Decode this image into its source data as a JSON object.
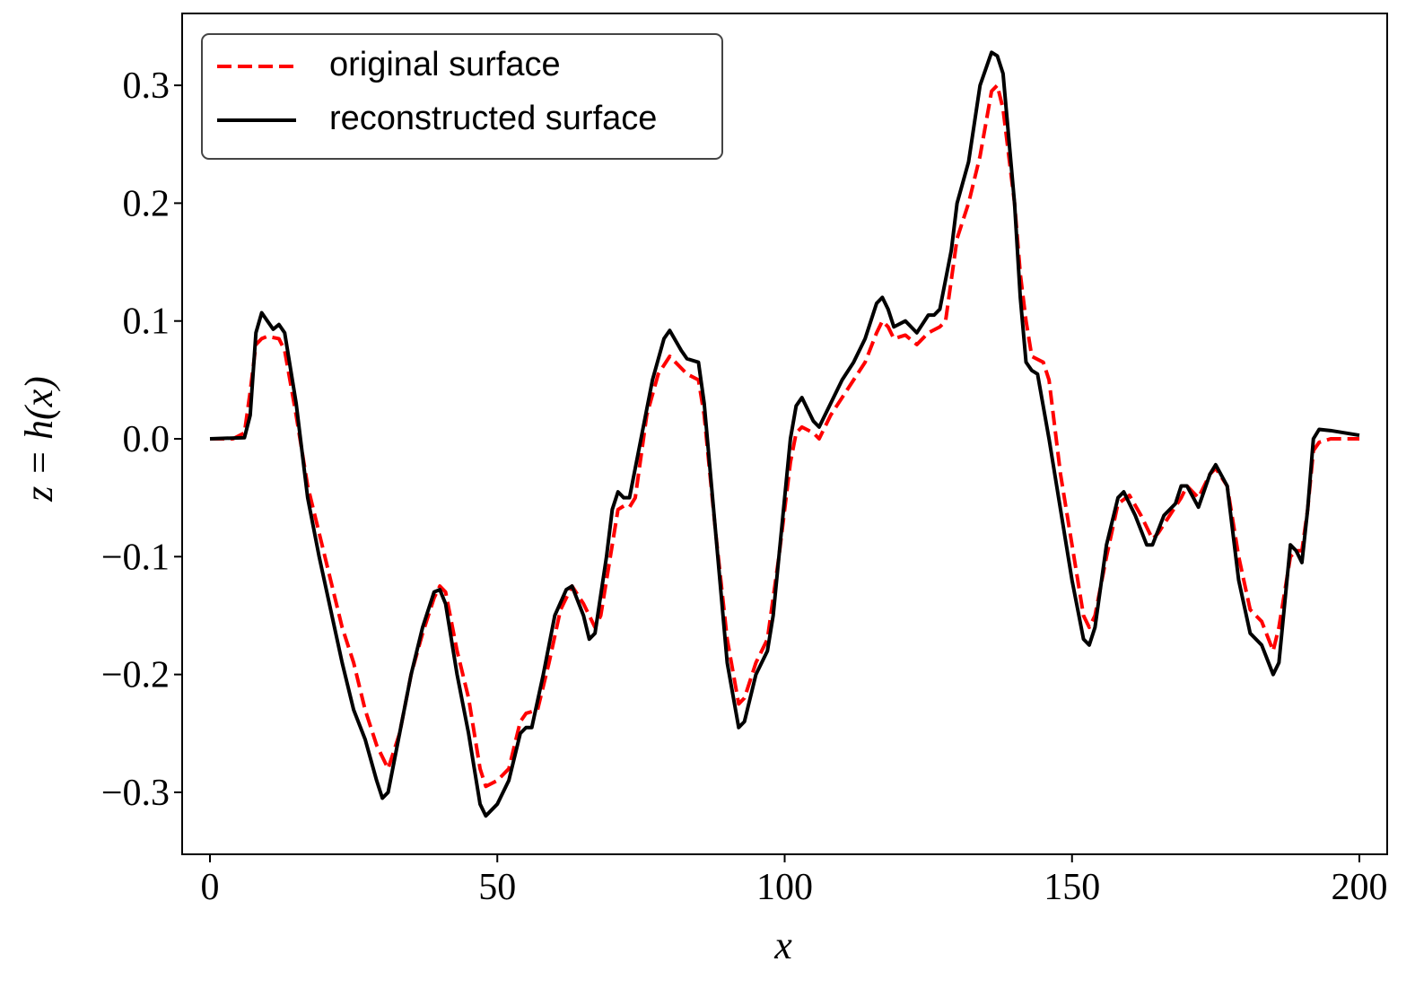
{
  "chart_data": {
    "type": "line",
    "xlabel": "x",
    "ylabel": "z = h(x)",
    "xlim": [
      -4.84,
      204.84
    ],
    "ylim": [
      -0.3526,
      0.361
    ],
    "xticks": [
      0,
      50,
      100,
      150,
      200
    ],
    "yticks": [
      {
        "value": -0.3,
        "label": "−0.3"
      },
      {
        "value": -0.2,
        "label": "−0.2"
      },
      {
        "value": -0.1,
        "label": "−0.1"
      },
      {
        "value": 0,
        "label": "0.0"
      },
      0.1,
      0.2,
      0.3
    ],
    "legend": "upper left",
    "series": [
      {
        "name": "original surface",
        "color": "#ff0000",
        "linestyle": "dashed",
        "x": [
          0,
          4,
          6,
          7,
          8,
          9,
          10,
          12,
          13,
          15,
          17,
          19,
          21,
          23,
          25,
          27,
          29,
          31,
          33,
          35,
          37,
          39,
          40,
          41,
          43,
          45,
          47,
          48,
          50,
          52,
          54,
          55,
          57,
          59,
          61,
          63,
          65,
          67,
          68,
          70,
          71,
          72,
          73,
          74,
          76,
          78,
          80,
          82,
          83,
          85,
          86,
          88,
          90,
          92,
          93,
          95,
          97,
          99,
          101,
          102,
          103,
          105,
          106,
          108,
          110,
          112,
          114,
          116,
          117,
          118,
          119,
          121,
          123,
          125,
          127,
          128,
          130,
          132,
          134,
          136,
          137,
          138,
          140,
          141,
          142,
          143,
          145,
          146,
          148,
          150,
          152,
          153,
          154,
          156,
          158,
          160,
          162,
          164,
          165,
          167,
          169,
          170,
          171,
          172,
          174,
          175,
          177,
          179,
          181,
          183,
          185,
          186,
          188,
          189,
          190,
          191,
          192,
          193,
          195,
          200
        ],
        "values": [
          0,
          0,
          0.005,
          0.04,
          0.08,
          0.085,
          0.087,
          0.085,
          0.075,
          0.02,
          -0.04,
          -0.08,
          -0.12,
          -0.16,
          -0.19,
          -0.23,
          -0.26,
          -0.28,
          -0.25,
          -0.2,
          -0.165,
          -0.135,
          -0.125,
          -0.13,
          -0.18,
          -0.22,
          -0.28,
          -0.295,
          -0.29,
          -0.28,
          -0.24,
          -0.233,
          -0.23,
          -0.19,
          -0.145,
          -0.125,
          -0.14,
          -0.16,
          -0.15,
          -0.09,
          -0.06,
          -0.057,
          -0.058,
          -0.05,
          0.02,
          0.055,
          0.07,
          0.06,
          0.055,
          0.05,
          0.02,
          -0.08,
          -0.17,
          -0.225,
          -0.22,
          -0.19,
          -0.17,
          -0.1,
          -0.02,
          0.005,
          0.01,
          0.005,
          0,
          0.02,
          0.035,
          0.05,
          0.065,
          0.09,
          0.1,
          0.095,
          0.085,
          0.088,
          0.08,
          0.09,
          0.095,
          0.1,
          0.17,
          0.2,
          0.24,
          0.295,
          0.3,
          0.28,
          0.2,
          0.14,
          0.1,
          0.07,
          0.065,
          0.05,
          -0.03,
          -0.09,
          -0.15,
          -0.16,
          -0.15,
          -0.1,
          -0.055,
          -0.048,
          -0.065,
          -0.085,
          -0.08,
          -0.065,
          -0.05,
          -0.04,
          -0.045,
          -0.05,
          -0.03,
          -0.025,
          -0.04,
          -0.1,
          -0.145,
          -0.155,
          -0.18,
          -0.16,
          -0.1,
          -0.095,
          -0.095,
          -0.06,
          -0.01,
          -0.003,
          0,
          0
        ]
      },
      {
        "name": "reconstructed surface",
        "color": "#000000",
        "linestyle": "solid",
        "x": [
          0,
          6,
          7,
          8,
          9,
          10,
          11,
          12,
          13,
          15,
          17,
          19,
          21,
          23,
          25,
          27,
          29,
          30,
          31,
          33,
          35,
          37,
          39,
          40,
          41,
          43,
          45,
          46,
          47,
          48,
          50,
          52,
          54,
          55,
          56,
          58,
          60,
          62,
          63,
          65,
          66,
          67,
          69,
          70,
          71,
          72,
          73,
          75,
          77,
          79,
          80,
          82,
          83,
          85,
          86,
          88,
          90,
          92,
          93,
          95,
          97,
          98,
          100,
          101,
          102,
          103,
          105,
          106,
          108,
          110,
          112,
          114,
          116,
          117,
          118,
          119,
          121,
          123,
          125,
          126,
          127,
          129,
          130,
          132,
          134,
          136,
          137,
          138,
          140,
          141,
          142,
          143,
          144,
          146,
          148,
          150,
          152,
          153,
          154,
          156,
          158,
          159,
          161,
          163,
          164,
          166,
          168,
          169,
          170,
          172,
          174,
          175,
          177,
          179,
          181,
          183,
          185,
          186,
          188,
          189,
          190,
          191,
          192,
          193,
          195,
          200
        ],
        "values": [
          0,
          0.001,
          0.02,
          0.09,
          0.107,
          0.1,
          0.093,
          0.097,
          0.09,
          0.03,
          -0.05,
          -0.1,
          -0.145,
          -0.19,
          -0.23,
          -0.255,
          -0.29,
          -0.305,
          -0.3,
          -0.25,
          -0.2,
          -0.16,
          -0.13,
          -0.128,
          -0.14,
          -0.2,
          -0.25,
          -0.28,
          -0.31,
          -0.32,
          -0.31,
          -0.29,
          -0.25,
          -0.245,
          -0.245,
          -0.2,
          -0.15,
          -0.128,
          -0.125,
          -0.15,
          -0.17,
          -0.165,
          -0.1,
          -0.06,
          -0.045,
          -0.05,
          -0.05,
          0,
          0.05,
          0.085,
          0.092,
          0.075,
          0.068,
          0.065,
          0.03,
          -0.08,
          -0.19,
          -0.245,
          -0.24,
          -0.2,
          -0.18,
          -0.15,
          -0.05,
          0,
          0.028,
          0.035,
          0.015,
          0.01,
          0.03,
          0.05,
          0.065,
          0.085,
          0.115,
          0.12,
          0.11,
          0.095,
          0.1,
          0.09,
          0.105,
          0.105,
          0.11,
          0.16,
          0.2,
          0.235,
          0.3,
          0.328,
          0.325,
          0.31,
          0.2,
          0.12,
          0.065,
          0.058,
          0.055,
          0,
          -0.06,
          -0.12,
          -0.17,
          -0.175,
          -0.16,
          -0.09,
          -0.05,
          -0.045,
          -0.065,
          -0.09,
          -0.09,
          -0.065,
          -0.055,
          -0.04,
          -0.04,
          -0.058,
          -0.03,
          -0.022,
          -0.04,
          -0.12,
          -0.165,
          -0.175,
          -0.2,
          -0.19,
          -0.09,
          -0.095,
          -0.105,
          -0.06,
          0,
          0.008,
          0.007,
          0.003
        ]
      }
    ]
  }
}
